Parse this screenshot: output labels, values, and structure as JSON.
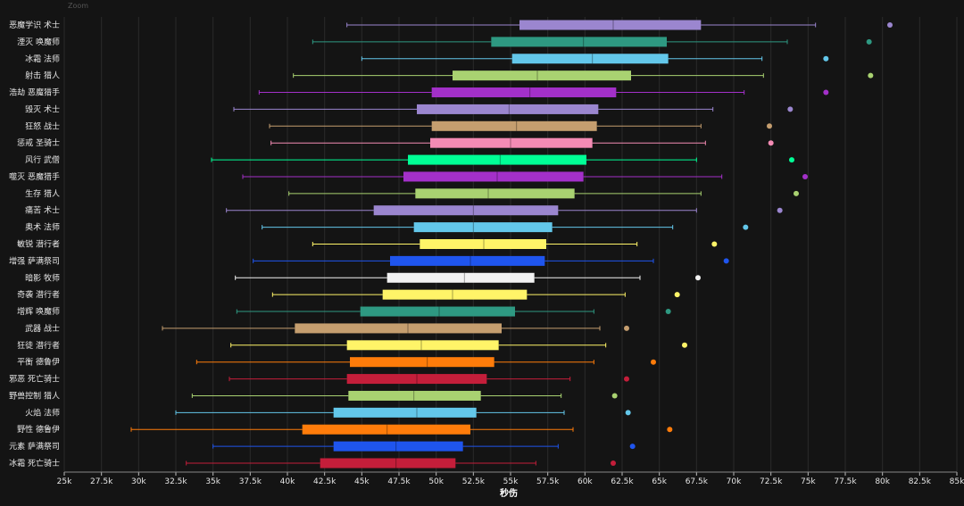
{
  "corner_tag": "Zoom",
  "chart_data": {
    "type": "box",
    "orientation": "horizontal",
    "title": "",
    "xlabel": "秒伤",
    "ylabel": "",
    "xlim": [
      25000,
      85000
    ],
    "xticks": [
      25000,
      27500,
      30000,
      32500,
      35000,
      37500,
      40000,
      42500,
      45000,
      47500,
      50000,
      52500,
      55000,
      57500,
      60000,
      62500,
      65000,
      67500,
      70000,
      72500,
      75000,
      77500,
      80000,
      82500,
      85000
    ],
    "xtick_labels": [
      "25k",
      "27.5k",
      "30k",
      "32.5k",
      "35k",
      "37.5k",
      "40k",
      "42.5k",
      "45k",
      "47.5k",
      "50k",
      "52.5k",
      "55k",
      "57.5k",
      "60k",
      "62.5k",
      "65k",
      "67.5k",
      "70k",
      "72.5k",
      "75k",
      "77.5k",
      "80k",
      "82.5k",
      "85k"
    ],
    "grid": true,
    "series": [
      {
        "name": "恶魔学识 术士",
        "color": "#9b86cf",
        "whisker_low": 44000,
        "q1": 55600,
        "median": 61900,
        "q3": 67800,
        "whisker_high": 75500,
        "outlier": 80500
      },
      {
        "name": "湮灭 唤魔师",
        "color": "#2e9982",
        "whisker_low": 41700,
        "q1": 53700,
        "median": 59900,
        "q3": 65500,
        "whisker_high": 73600,
        "outlier": 79100
      },
      {
        "name": "冰霜 法师",
        "color": "#63c7ea",
        "whisker_low": 45000,
        "q1": 55100,
        "median": 60500,
        "q3": 65600,
        "whisker_high": 71900,
        "outlier": 76200
      },
      {
        "name": "射击 猎人",
        "color": "#a9d271",
        "whisker_low": 40400,
        "q1": 51100,
        "median": 56800,
        "q3": 63100,
        "whisker_high": 72000,
        "outlier": 79200
      },
      {
        "name": "浩劫 恶魔猎手",
        "color": "#a330c9",
        "whisker_low": 38100,
        "q1": 49700,
        "median": 56300,
        "q3": 62100,
        "whisker_high": 70700,
        "outlier": 76200
      },
      {
        "name": "毁灭 术士",
        "color": "#9b86cf",
        "whisker_low": 36400,
        "q1": 48700,
        "median": 54900,
        "q3": 60900,
        "whisker_high": 68600,
        "outlier": 73800
      },
      {
        "name": "狂怒 战士",
        "color": "#c59e6f",
        "whisker_low": 38800,
        "q1": 49700,
        "median": 55400,
        "q3": 60800,
        "whisker_high": 67800,
        "outlier": 72400
      },
      {
        "name": "惩戒 圣骑士",
        "color": "#f48bb4",
        "whisker_low": 38900,
        "q1": 49600,
        "median": 55000,
        "q3": 60500,
        "whisker_high": 68100,
        "outlier": 72500
      },
      {
        "name": "风行 武僧",
        "color": "#00ff96",
        "whisker_low": 34900,
        "q1": 48100,
        "median": 54300,
        "q3": 60100,
        "whisker_high": 67500,
        "outlier": 73900
      },
      {
        "name": "噬灭 恶魔猎手",
        "color": "#a330c9",
        "whisker_low": 37000,
        "q1": 47800,
        "median": 54100,
        "q3": 59900,
        "whisker_high": 69200,
        "outlier": 74800
      },
      {
        "name": "生存 猎人",
        "color": "#a9d271",
        "whisker_low": 40100,
        "q1": 48600,
        "median": 53500,
        "q3": 59300,
        "whisker_high": 67800,
        "outlier": 74200
      },
      {
        "name": "痛苦 术士",
        "color": "#9b86cf",
        "whisker_low": 35900,
        "q1": 45800,
        "median": 52500,
        "q3": 58200,
        "whisker_high": 67500,
        "outlier": 73100
      },
      {
        "name": "奥术 法师",
        "color": "#63c7ea",
        "whisker_low": 38300,
        "q1": 48500,
        "median": 52500,
        "q3": 57800,
        "whisker_high": 65900,
        "outlier": 70800
      },
      {
        "name": "敏锐 潜行者",
        "color": "#fff468",
        "whisker_low": 41700,
        "q1": 48900,
        "median": 53200,
        "q3": 57400,
        "whisker_high": 63500,
        "outlier": 68700
      },
      {
        "name": "增强 萨满祭司",
        "color": "#1f55ee",
        "whisker_low": 37700,
        "q1": 46900,
        "median": 52300,
        "q3": 57300,
        "whisker_high": 64600,
        "outlier": 69500
      },
      {
        "name": "暗影 牧师",
        "color": "#f2f2f2",
        "whisker_low": 36500,
        "q1": 46700,
        "median": 51900,
        "q3": 56600,
        "whisker_high": 63700,
        "outlier": 67600
      },
      {
        "name": "奇袭 潜行者",
        "color": "#fff468",
        "whisker_low": 39000,
        "q1": 46400,
        "median": 51100,
        "q3": 56100,
        "whisker_high": 62700,
        "outlier": 66200
      },
      {
        "name": "增辉 唤魔师",
        "color": "#2e9982",
        "whisker_low": 36600,
        "q1": 44900,
        "median": 50200,
        "q3": 55300,
        "whisker_high": 60600,
        "outlier": 65600
      },
      {
        "name": "武器 战士",
        "color": "#c59e6f",
        "whisker_low": 31600,
        "q1": 40500,
        "median": 48100,
        "q3": 54400,
        "whisker_high": 61000,
        "outlier": 62800
      },
      {
        "name": "狂徒 潜行者",
        "color": "#fff468",
        "whisker_low": 36200,
        "q1": 44000,
        "median": 49000,
        "q3": 54200,
        "whisker_high": 61400,
        "outlier": 66700
      },
      {
        "name": "平衡 德鲁伊",
        "color": "#ff7c0a",
        "whisker_low": 33900,
        "q1": 44200,
        "median": 49400,
        "q3": 53900,
        "whisker_high": 60600,
        "outlier": 64600
      },
      {
        "name": "邪恶 死亡骑士",
        "color": "#c41e3a",
        "whisker_low": 36100,
        "q1": 44000,
        "median": 48700,
        "q3": 53400,
        "whisker_high": 59000,
        "outlier": 62800
      },
      {
        "name": "野兽控制 猎人",
        "color": "#a9d271",
        "whisker_low": 33600,
        "q1": 44100,
        "median": 48500,
        "q3": 53000,
        "whisker_high": 58400,
        "outlier": 62000
      },
      {
        "name": "火焰 法师",
        "color": "#63c7ea",
        "whisker_low": 32500,
        "q1": 43100,
        "median": 48700,
        "q3": 52700,
        "whisker_high": 58600,
        "outlier": 62900
      },
      {
        "name": "野性 德鲁伊",
        "color": "#ff7c0a",
        "whisker_low": 29500,
        "q1": 41000,
        "median": 46700,
        "q3": 52300,
        "whisker_high": 59200,
        "outlier": 65700
      },
      {
        "name": "元素 萨满祭司",
        "color": "#1f55ee",
        "whisker_low": 35000,
        "q1": 43100,
        "median": 47300,
        "q3": 51800,
        "whisker_high": 58200,
        "outlier": 63200
      },
      {
        "name": "冰霜 死亡骑士",
        "color": "#c41e3a",
        "whisker_low": 33200,
        "q1": 42200,
        "median": 47300,
        "q3": 51300,
        "whisker_high": 56700,
        "outlier": 61900
      }
    ]
  }
}
